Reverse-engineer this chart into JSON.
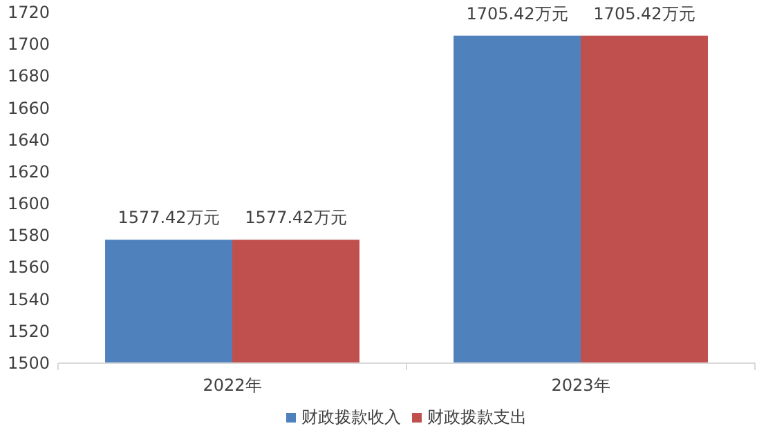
{
  "chart_data": {
    "type": "bar",
    "categories": [
      "2022年",
      "2023年"
    ],
    "series": [
      {
        "name": "财政拨款收入",
        "color": "#4f81bd",
        "values": [
          1577.42,
          1705.42
        ],
        "value_labels": [
          "1577.42万元",
          "1705.42万元"
        ]
      },
      {
        "name": "财政拨款支出",
        "color": "#c0504d",
        "values": [
          1577.42,
          1705.42
        ],
        "value_labels": [
          "1577.42万元",
          "1705.42万元"
        ]
      }
    ],
    "ylim": [
      1500,
      1720
    ],
    "yticks": [
      1500,
      1520,
      1540,
      1560,
      1580,
      1600,
      1620,
      1640,
      1660,
      1680,
      1700,
      1720
    ],
    "grid": false,
    "legend": "bottom"
  }
}
